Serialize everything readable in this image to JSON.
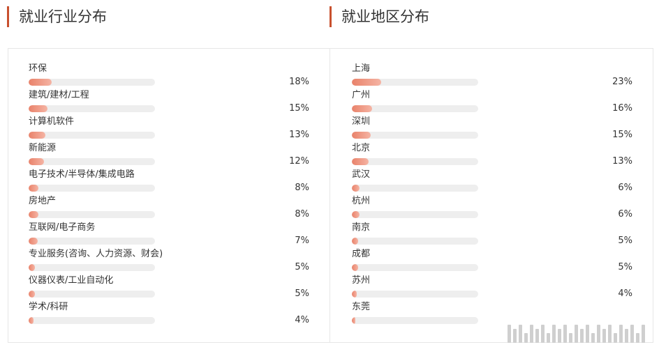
{
  "titles": {
    "industry": "就业行业分布",
    "region": "就业地区分布"
  },
  "chart_data": [
    {
      "type": "bar",
      "orientation": "horizontal",
      "title": "就业行业分布",
      "unit": "%",
      "xlim": [
        0,
        100
      ],
      "categories": [
        "环保",
        "建筑/建材/工程",
        "计算机软件",
        "新能源",
        "电子技术/半导体/集成电路",
        "房地产",
        "互联网/电子商务",
        "专业服务(咨询、人力资源、财会)",
        "仪器仪表/工业自动化",
        "学术/科研"
      ],
      "values": [
        18,
        15,
        13,
        12,
        8,
        8,
        7,
        5,
        5,
        4
      ],
      "labels": [
        "18%",
        "15%",
        "13%",
        "12%",
        "8%",
        "8%",
        "7%",
        "5%",
        "5%",
        "4%"
      ]
    },
    {
      "type": "bar",
      "orientation": "horizontal",
      "title": "就业地区分布",
      "unit": "%",
      "xlim": [
        0,
        100
      ],
      "categories": [
        "上海",
        "广州",
        "深圳",
        "北京",
        "武汉",
        "杭州",
        "南京",
        "成都",
        "苏州",
        "东莞"
      ],
      "values": [
        23,
        16,
        15,
        13,
        6,
        6,
        5,
        5,
        4,
        3
      ],
      "labels": [
        "23%",
        "16%",
        "15%",
        "13%",
        "6%",
        "6%",
        "5%",
        "5%",
        "4%",
        ""
      ]
    }
  ],
  "colors": {
    "title_accent": "#c8502e",
    "bar_start": "#e9826a",
    "bar_end": "#f5b4a4",
    "track": "#eeeeee"
  }
}
